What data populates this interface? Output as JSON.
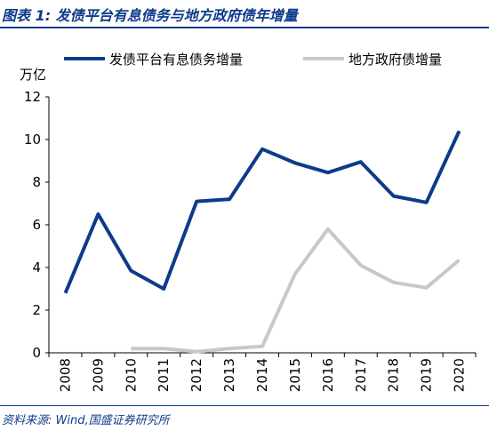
{
  "header": {
    "title": "图表 1:  发债平台有息债务与地方政府债年增量"
  },
  "footer": {
    "source": "资料来源:  Wind,国盛证券研究所"
  },
  "colors": {
    "series1": "#0d3b8a",
    "series2": "#c8c8c8",
    "accent": "#0d3b8a"
  },
  "chart_data": {
    "type": "line",
    "title": "",
    "ylabel": "万亿",
    "xlabel": "",
    "ylim": [
      0,
      12
    ],
    "yticks": [
      0,
      2,
      4,
      6,
      8,
      10,
      12
    ],
    "x": [
      "2008",
      "2009",
      "2010",
      "2011",
      "2012",
      "2013",
      "2014",
      "2015",
      "2016",
      "2017",
      "2018",
      "2019",
      "2020"
    ],
    "legend_position": "top",
    "grid": false,
    "series": [
      {
        "name": "发债平台有息债务增量",
        "values": [
          2.8,
          6.5,
          3.85,
          3.0,
          7.1,
          7.2,
          9.55,
          8.9,
          8.45,
          8.95,
          7.35,
          7.05,
          10.4
        ]
      },
      {
        "name": "地方政府债增量",
        "values": [
          null,
          null,
          0.2,
          0.2,
          0.05,
          0.2,
          0.3,
          3.7,
          5.8,
          4.1,
          3.3,
          3.05,
          4.35
        ]
      }
    ]
  }
}
